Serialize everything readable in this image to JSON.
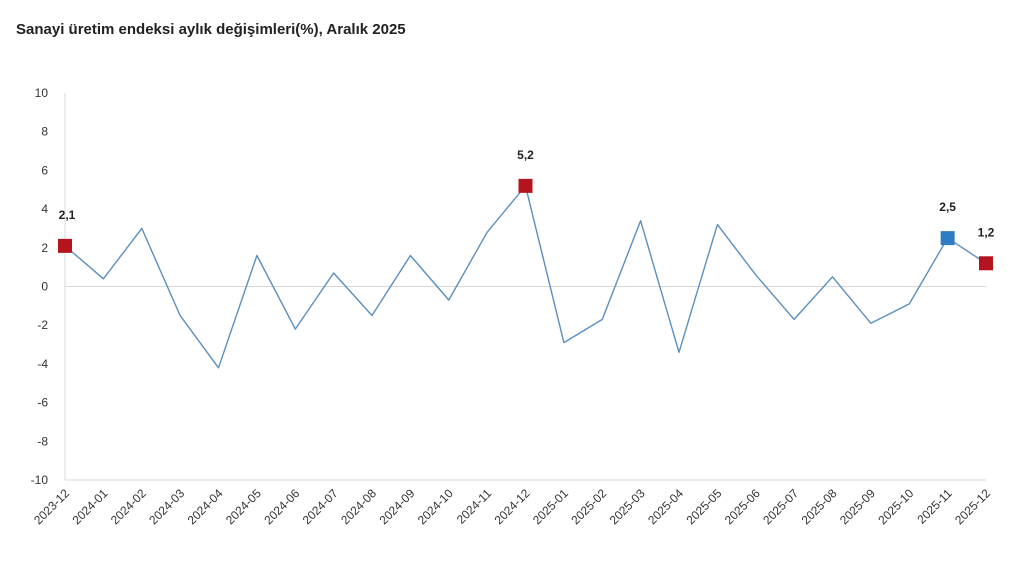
{
  "chart_data": {
    "type": "line",
    "title": "Sanayi üretim endeksi aylık değişimleri(%), Aralık 2025",
    "xlabel": "",
    "ylabel": "",
    "ylim": [
      -10,
      10
    ],
    "yticks": [
      "10",
      "8",
      "6",
      "4",
      "2",
      "0",
      "-2",
      "-4",
      "-6",
      "-8",
      "-10"
    ],
    "ytick_values": [
      10,
      8,
      6,
      4,
      2,
      0,
      -2,
      -4,
      -6,
      -8,
      -10
    ],
    "grid": false,
    "legend": "none",
    "categories": [
      "2023-12",
      "2024-01",
      "2024-02",
      "2024-03",
      "2024-04",
      "2024-05",
      "2024-06",
      "2024-07",
      "2024-08",
      "2024-09",
      "2024-10",
      "2024-11",
      "2024-12",
      "2025-01",
      "2025-02",
      "2025-03",
      "2025-04",
      "2025-05",
      "2025-06",
      "2025-07",
      "2025-08",
      "2025-09",
      "2025-10",
      "2025-11",
      "2025-12"
    ],
    "series": [
      {
        "values": [
          2.1,
          0.4,
          3.0,
          -1.5,
          -4.2,
          1.6,
          -2.2,
          0.7,
          -1.5,
          1.6,
          -0.7,
          2.8,
          5.2,
          -2.9,
          -1.7,
          3.4,
          -3.4,
          3.2,
          0.6,
          -1.7,
          0.5,
          -1.9,
          -0.9,
          2.5,
          1.2
        ],
        "color": "#5b8fbf"
      }
    ],
    "highlights": [
      {
        "index": 0,
        "label": "2,1",
        "color": "#b5141e"
      },
      {
        "index": 12,
        "label": "5,2",
        "color": "#b5141e"
      },
      {
        "index": 23,
        "label": "2,5",
        "color": "#2e7cc4"
      },
      {
        "index": 24,
        "label": "1,2",
        "color": "#b5141e"
      }
    ]
  }
}
